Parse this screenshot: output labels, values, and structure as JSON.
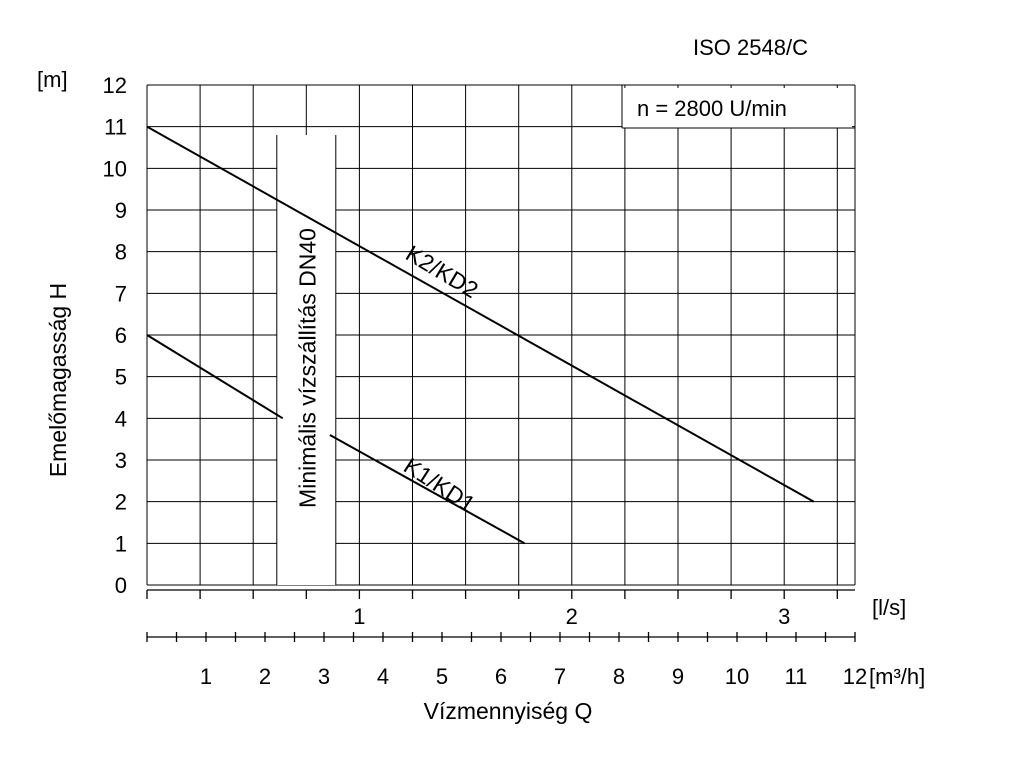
{
  "chart_data": {
    "type": "line",
    "standard": "ISO 2548/C",
    "speed_label": "n = 2800 U/min",
    "ylabel": "Emelőmagasság H",
    "y_unit": "[m]",
    "ylim": [
      0,
      12
    ],
    "y_ticks": [
      0,
      1,
      2,
      3,
      4,
      5,
      6,
      7,
      8,
      9,
      10,
      11,
      12
    ],
    "xlabel": "Vízmennyiség Q",
    "x_unit_ls": "[l/s]",
    "x_ticks_ls": [
      1,
      2,
      3
    ],
    "x_unit_m3h": "[m³/h]",
    "x_ticks_m3h": [
      1,
      2,
      3,
      4,
      5,
      6,
      7,
      8,
      9,
      10,
      11,
      12
    ],
    "xlim_m3h": [
      0,
      12
    ],
    "min_flow_label": "Minimális vízszállítás DN40",
    "min_flow_band_m3h": [
      2.2,
      3.2
    ],
    "series": [
      {
        "name": "K2/KD2",
        "x": [
          0,
          11.3
        ],
        "y": [
          11,
          2
        ]
      },
      {
        "name": "K1/KD1",
        "x": [
          0,
          2.3,
          3.1,
          6.4
        ],
        "y": [
          6,
          4,
          3.6,
          1
        ]
      }
    ],
    "grid": true
  }
}
